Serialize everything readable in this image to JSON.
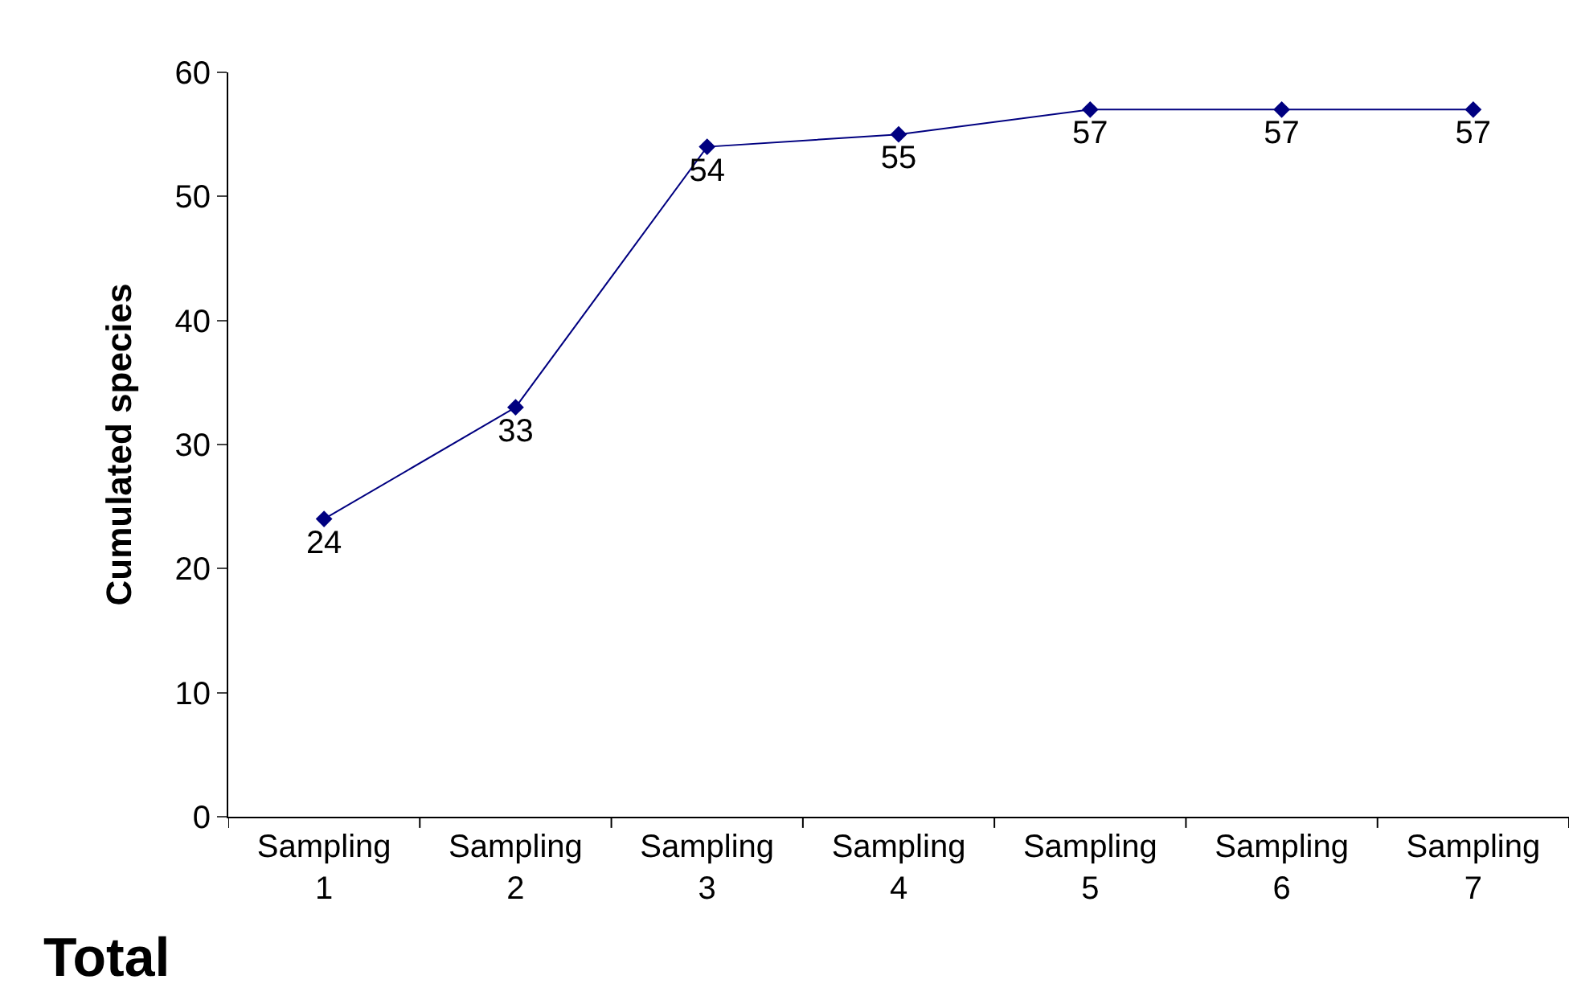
{
  "chart_data": {
    "type": "line",
    "ylabel": "Cumulated species",
    "categories": [
      "Sampling\n1",
      "Sampling\n2",
      "Sampling\n3",
      "Sampling\n4",
      "Sampling\n5",
      "Sampling\n6",
      "Sampling\n7"
    ],
    "series": [
      {
        "color": "#000080",
        "values": [
          24,
          33,
          54,
          55,
          57,
          57,
          57
        ]
      }
    ],
    "ylim": [
      0,
      60
    ],
    "yticks": [
      0,
      10,
      20,
      30,
      40,
      50,
      60
    ],
    "marker": "diamond",
    "line_style": "solid",
    "data_labels": true,
    "annotations": [
      "Total"
    ]
  }
}
